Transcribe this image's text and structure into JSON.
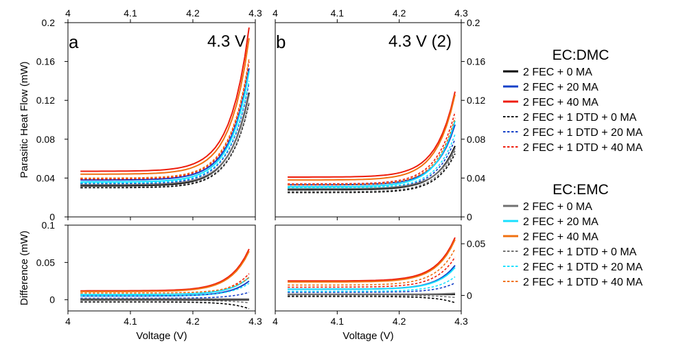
{
  "chart_data": {
    "type": "line",
    "x_range": [
      4.0,
      4.3
    ],
    "x_ticks": [
      "4",
      "4.1",
      "4.2",
      "4.3"
    ],
    "xlabel": "Voltage (V)",
    "x_start": 4.02,
    "x_end": 4.29,
    "legend": {
      "groups": [
        {
          "title": "EC:DMC",
          "entries": [
            {
              "label": "2 FEC + 0 MA",
              "color": "#000000",
              "dash": "solid"
            },
            {
              "label": "2 FEC + 20 MA",
              "color": "#1540c8",
              "dash": "solid"
            },
            {
              "label": "2 FEC + 40 MA",
              "color": "#ee1c0c",
              "dash": "solid"
            },
            {
              "label": "2 FEC + 1 DTD + 0 MA",
              "color": "#000000",
              "dash": "dotted"
            },
            {
              "label": "2 FEC + 1 DTD + 20 MA",
              "color": "#1540c8",
              "dash": "dotted"
            },
            {
              "label": "2 FEC + 1 DTD + 40 MA",
              "color": "#ee1c0c",
              "dash": "dotted"
            }
          ]
        },
        {
          "title": "EC:EMC",
          "entries": [
            {
              "label": "2 FEC + 0 MA",
              "color": "#707070",
              "dash": "solid"
            },
            {
              "label": "2 FEC + 20 MA",
              "color": "#18e0ff",
              "dash": "solid"
            },
            {
              "label": "2 FEC + 40 MA",
              "color": "#f07010",
              "dash": "solid"
            },
            {
              "label": "2 FEC + 1 DTD + 0 MA",
              "color": "#707070",
              "dash": "dotted"
            },
            {
              "label": "2 FEC + 1 DTD + 20 MA",
              "color": "#18e0ff",
              "dash": "dotted"
            },
            {
              "label": "2 FEC + 1 DTD + 40 MA",
              "color": "#f07010",
              "dash": "dotted"
            }
          ]
        }
      ]
    },
    "panels": [
      {
        "label": "a",
        "title": "4.3 V",
        "top": {
          "ylabel": "Parasitic Heat Flow (mW)",
          "y_range": [
            0,
            0.2
          ],
          "y_ticks": [
            "0",
            "0.04",
            "0.08",
            "0.12",
            "0.16",
            "0.2"
          ],
          "series": [
            {
              "name": "EC:DMC 2 FEC + 0 MA",
              "color": "#000000",
              "dash": "solid",
              "y_start": 0.032,
              "y_end": 0.128
            },
            {
              "name": "EC:DMC 2 FEC + 20 MA",
              "color": "#1540c8",
              "dash": "solid",
              "y_start": 0.038,
              "y_end": 0.153
            },
            {
              "name": "EC:DMC 2 FEC + 40 MA",
              "color": "#ee1c0c",
              "dash": "solid",
              "y_start": 0.047,
              "y_end": 0.195
            },
            {
              "name": "EC:DMC 2 FEC + 1 DTD + 0 MA",
              "color": "#000000",
              "dash": "dotted",
              "y_start": 0.03,
              "y_end": 0.117
            },
            {
              "name": "EC:DMC 2 FEC + 1 DTD + 20 MA",
              "color": "#1540c8",
              "dash": "dotted",
              "y_start": 0.034,
              "y_end": 0.138
            },
            {
              "name": "EC:DMC 2 FEC + 1 DTD + 40 MA",
              "color": "#ee1c0c",
              "dash": "dotted",
              "y_start": 0.039,
              "y_end": 0.16
            },
            {
              "name": "EC:EMC 2 FEC + 0 MA",
              "color": "#707070",
              "dash": "solid",
              "y_start": 0.033,
              "y_end": 0.126
            },
            {
              "name": "EC:EMC 2 FEC + 20 MA",
              "color": "#18e0ff",
              "dash": "solid",
              "y_start": 0.036,
              "y_end": 0.15
            },
            {
              "name": "EC:EMC 2 FEC + 40 MA",
              "color": "#f07010",
              "dash": "solid",
              "y_start": 0.044,
              "y_end": 0.184
            },
            {
              "name": "EC:EMC 2 FEC + 1 DTD + 0 MA",
              "color": "#707070",
              "dash": "dotted",
              "y_start": 0.031,
              "y_end": 0.118
            },
            {
              "name": "EC:EMC 2 FEC + 1 DTD + 20 MA",
              "color": "#18e0ff",
              "dash": "dotted",
              "y_start": 0.035,
              "y_end": 0.14
            },
            {
              "name": "EC:EMC 2 FEC + 1 DTD + 40 MA",
              "color": "#f07010",
              "dash": "dotted",
              "y_start": 0.04,
              "y_end": 0.163
            }
          ]
        },
        "bottom": {
          "ylabel": "Difference (mW)",
          "y_range": [
            -0.015,
            0.1
          ],
          "y_ticks": [
            "0",
            "0.05",
            "0.1"
          ],
          "series": [
            {
              "name": "EC:DMC 2 FEC + 0 MA",
              "color": "#000000",
              "dash": "solid",
              "y_start": 0.0,
              "y_end": 0.0
            },
            {
              "name": "EC:DMC 2 FEC + 20 MA",
              "color": "#1540c8",
              "dash": "solid",
              "y_start": 0.005,
              "y_end": 0.025
            },
            {
              "name": "EC:DMC 2 FEC + 40 MA",
              "color": "#ee1c0c",
              "dash": "solid",
              "y_start": 0.012,
              "y_end": 0.068
            },
            {
              "name": "EC:DMC 2 FEC + 1 DTD + 0 MA",
              "color": "#000000",
              "dash": "dotted",
              "y_start": -0.003,
              "y_end": -0.012
            },
            {
              "name": "EC:DMC 2 FEC + 1 DTD + 20 MA",
              "color": "#1540c8",
              "dash": "dotted",
              "y_start": 0.002,
              "y_end": 0.01
            },
            {
              "name": "EC:DMC 2 FEC + 1 DTD + 40 MA",
              "color": "#ee1c0c",
              "dash": "dotted",
              "y_start": 0.007,
              "y_end": 0.035
            },
            {
              "name": "EC:EMC 2 FEC + 0 MA",
              "color": "#707070",
              "dash": "solid",
              "y_start": 0.001,
              "y_end": 0.001
            },
            {
              "name": "EC:EMC 2 FEC + 20 MA",
              "color": "#18e0ff",
              "dash": "solid",
              "y_start": 0.007,
              "y_end": 0.03
            },
            {
              "name": "EC:EMC 2 FEC + 40 MA",
              "color": "#f07010",
              "dash": "solid",
              "y_start": 0.011,
              "y_end": 0.065
            },
            {
              "name": "EC:EMC 2 FEC + 1 DTD + 0 MA",
              "color": "#707070",
              "dash": "dotted",
              "y_start": -0.001,
              "y_end": -0.004
            },
            {
              "name": "EC:EMC 2 FEC + 1 DTD + 20 MA",
              "color": "#18e0ff",
              "dash": "dotted",
              "y_start": 0.005,
              "y_end": 0.022
            },
            {
              "name": "EC:EMC 2 FEC + 1 DTD + 40 MA",
              "color": "#f07010",
              "dash": "dotted",
              "y_start": 0.009,
              "y_end": 0.03
            }
          ]
        }
      },
      {
        "label": "b",
        "title": "4.3 V (2)",
        "top": {
          "ylabel": "",
          "y_range": [
            0,
            0.2
          ],
          "y_ticks": [
            "0",
            "0.04",
            "0.08",
            "0.12",
            "0.16",
            "0.2"
          ],
          "series": [
            {
              "name": "EC:DMC 2 FEC + 0 MA",
              "color": "#000000",
              "dash": "solid",
              "y_start": 0.028,
              "y_end": 0.073
            },
            {
              "name": "EC:DMC 2 FEC + 20 MA",
              "color": "#1540c8",
              "dash": "solid",
              "y_start": 0.033,
              "y_end": 0.095
            },
            {
              "name": "EC:DMC 2 FEC + 40 MA",
              "color": "#ee1c0c",
              "dash": "solid",
              "y_start": 0.041,
              "y_end": 0.129
            },
            {
              "name": "EC:DMC 2 FEC + 1 DTD + 0 MA",
              "color": "#000000",
              "dash": "dotted",
              "y_start": 0.025,
              "y_end": 0.065
            },
            {
              "name": "EC:DMC 2 FEC + 1 DTD + 20 MA",
              "color": "#1540c8",
              "dash": "dotted",
              "y_start": 0.029,
              "y_end": 0.08
            },
            {
              "name": "EC:DMC 2 FEC + 1 DTD + 40 MA",
              "color": "#ee1c0c",
              "dash": "dotted",
              "y_start": 0.034,
              "y_end": 0.108
            },
            {
              "name": "EC:EMC 2 FEC + 0 MA",
              "color": "#707070",
              "dash": "solid",
              "y_start": 0.029,
              "y_end": 0.071
            },
            {
              "name": "EC:EMC 2 FEC + 20 MA",
              "color": "#18e0ff",
              "dash": "solid",
              "y_start": 0.031,
              "y_end": 0.099
            },
            {
              "name": "EC:EMC 2 FEC + 40 MA",
              "color": "#f07010",
              "dash": "solid",
              "y_start": 0.038,
              "y_end": 0.126
            },
            {
              "name": "EC:EMC 2 FEC + 1 DTD + 0 MA",
              "color": "#707070",
              "dash": "dotted",
              "y_start": 0.026,
              "y_end": 0.068
            },
            {
              "name": "EC:EMC 2 FEC + 1 DTD + 20 MA",
              "color": "#18e0ff",
              "dash": "dotted",
              "y_start": 0.03,
              "y_end": 0.085
            },
            {
              "name": "EC:EMC 2 FEC + 1 DTD + 40 MA",
              "color": "#f07010",
              "dash": "dotted",
              "y_start": 0.033,
              "y_end": 0.102
            }
          ]
        },
        "bottom": {
          "ylabel": "",
          "y_range": [
            -0.015,
            0.068
          ],
          "y_ticks": [
            "0",
            "0.05"
          ],
          "series": [
            {
              "name": "EC:DMC 2 FEC + 0 MA",
              "color": "#000000",
              "dash": "solid",
              "y_start": 0.001,
              "y_end": 0.001
            },
            {
              "name": "EC:DMC 2 FEC + 20 MA",
              "color": "#1540c8",
              "dash": "solid",
              "y_start": 0.006,
              "y_end": 0.029
            },
            {
              "name": "EC:DMC 2 FEC + 40 MA",
              "color": "#ee1c0c",
              "dash": "solid",
              "y_start": 0.014,
              "y_end": 0.056
            },
            {
              "name": "EC:DMC 2 FEC + 1 DTD + 0 MA",
              "color": "#000000",
              "dash": "dotted",
              "y_start": -0.001,
              "y_end": -0.007
            },
            {
              "name": "EC:DMC 2 FEC + 1 DTD + 20 MA",
              "color": "#1540c8",
              "dash": "dotted",
              "y_start": 0.003,
              "y_end": 0.012
            },
            {
              "name": "EC:DMC 2 FEC + 1 DTD + 40 MA",
              "color": "#ee1c0c",
              "dash": "dotted",
              "y_start": 0.008,
              "y_end": 0.037
            },
            {
              "name": "EC:EMC 2 FEC + 0 MA",
              "color": "#707070",
              "dash": "solid",
              "y_start": 0.001,
              "y_end": 0.002
            },
            {
              "name": "EC:EMC 2 FEC + 20 MA",
              "color": "#18e0ff",
              "dash": "solid",
              "y_start": 0.006,
              "y_end": 0.027
            },
            {
              "name": "EC:EMC 2 FEC + 40 MA",
              "color": "#f07010",
              "dash": "solid",
              "y_start": 0.013,
              "y_end": 0.054
            },
            {
              "name": "EC:EMC 2 FEC + 1 DTD + 0 MA",
              "color": "#707070",
              "dash": "dotted",
              "y_start": 0.0,
              "y_end": -0.002
            },
            {
              "name": "EC:EMC 2 FEC + 1 DTD + 20 MA",
              "color": "#18e0ff",
              "dash": "dotted",
              "y_start": 0.004,
              "y_end": 0.018
            },
            {
              "name": "EC:EMC 2 FEC + 1 DTD + 40 MA",
              "color": "#f07010",
              "dash": "dotted",
              "y_start": 0.01,
              "y_end": 0.045
            }
          ]
        }
      }
    ]
  }
}
